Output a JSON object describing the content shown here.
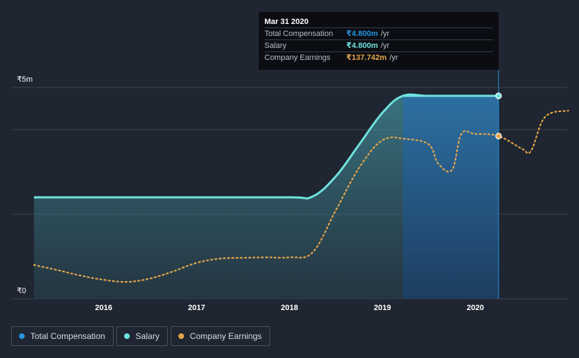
{
  "chart_data": {
    "type": "line",
    "title": "",
    "xlabel": "",
    "ylabel": "",
    "y_unit_label_top": "₹5m",
    "y_unit_label_bottom": "₹0",
    "ylim": [
      0,
      5.0
    ],
    "xlim": [
      2015.25,
      2021.0
    ],
    "x_ticks": [
      2016,
      2017,
      2018,
      2019,
      2020
    ],
    "x_tick_labels": [
      "2016",
      "2017",
      "2018",
      "2019",
      "2020"
    ],
    "series": [
      {
        "name": "Total Compensation",
        "color": "#2394df",
        "x": [
          2015.25,
          2018.25,
          2019.22,
          2020.25
        ],
        "values": [
          2.4,
          2.4,
          4.8,
          4.8
        ]
      },
      {
        "name": "Salary",
        "color": "#6fe3dd",
        "x": [
          2015.25,
          2016.0,
          2017.0,
          2018.0,
          2018.25,
          2018.5,
          2018.75,
          2019.0,
          2019.22,
          2019.5,
          2020.0,
          2020.25
        ],
        "values": [
          2.4,
          2.4,
          2.4,
          2.4,
          2.42,
          2.9,
          3.65,
          4.4,
          4.8,
          4.8,
          4.8,
          4.8
        ]
      },
      {
        "name": "Company Earnings",
        "color": "#e6a54a",
        "x": [
          2015.25,
          2015.5,
          2015.75,
          2016.0,
          2016.25,
          2016.5,
          2016.75,
          2017.0,
          2017.25,
          2017.5,
          2017.75,
          2018.0,
          2018.25,
          2018.5,
          2018.75,
          2019.0,
          2019.25,
          2019.5,
          2019.6,
          2019.75,
          2019.85,
          2020.0,
          2020.25,
          2020.5,
          2020.6,
          2020.75,
          2021.0
        ],
        "values": [
          0.8,
          0.68,
          0.55,
          0.45,
          0.4,
          0.48,
          0.65,
          0.85,
          0.95,
          0.97,
          0.98,
          0.98,
          1.1,
          2.1,
          3.1,
          3.75,
          3.78,
          3.65,
          3.2,
          3.05,
          3.9,
          3.9,
          3.85,
          3.55,
          3.5,
          4.3,
          4.45
        ]
      }
    ],
    "tooltip": {
      "date": "Mar 31 2020",
      "x": 2020.25,
      "rows": [
        {
          "label": "Total Compensation",
          "value": "₹4.800m",
          "unit": "/yr",
          "color": "#2394df"
        },
        {
          "label": "Salary",
          "value": "₹4.800m",
          "unit": "/yr",
          "color": "#6fe3dd"
        },
        {
          "label": "Company Earnings",
          "value": "₹137.742m",
          "unit": "/yr",
          "color": "#e6a54a"
        }
      ]
    },
    "legend": [
      {
        "name": "Total Compensation",
        "color": "#2394df"
      },
      {
        "name": "Salary",
        "color": "#6fe3dd"
      },
      {
        "name": "Company Earnings",
        "color": "#e6a54a"
      }
    ],
    "colors": {
      "background": "#1f2531",
      "grid": "#3a404c",
      "axis_text": "#ffffff"
    }
  }
}
